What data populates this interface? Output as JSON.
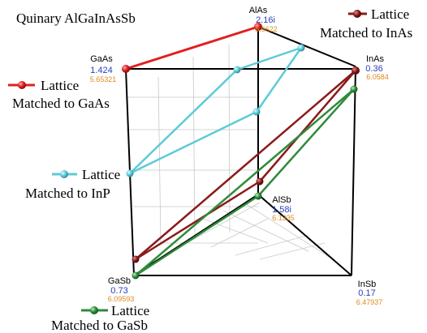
{
  "title": "Quinary AlGaInAsSb",
  "colors": {
    "gaas_line": "#e02020",
    "inp_line": "#5ccbd8",
    "inas_line": "#8b1a1a",
    "gasb_line": "#2e8b3a",
    "gap_text": "#2a3fbf",
    "lattice_text": "#e08a1a",
    "frame": "#000000",
    "grid": "#c8c8c8"
  },
  "vertices": {
    "alas": {
      "name": "AlAs",
      "gap": "2.16i",
      "lattice": "5.6622"
    },
    "gaas": {
      "name": "GaAs",
      "gap": "1.424",
      "lattice": "5.65321"
    },
    "inas": {
      "name": "InAs",
      "gap": "0.36",
      "lattice": "6.0584"
    },
    "alsb": {
      "name": "AlSb",
      "gap": "1.58i",
      "lattice": "6.1335"
    },
    "gasb": {
      "name": "GaSb",
      "gap": "0.73",
      "lattice": "6.09593"
    },
    "insb": {
      "name": "InSb",
      "gap": "0.17",
      "lattice": "6.47937"
    }
  },
  "legend": {
    "inas": {
      "line1": "Lattice",
      "line2": "Matched to InAs"
    },
    "gaas": {
      "line1": "Lattice",
      "line2": "Matched to GaAs"
    },
    "inp": {
      "line1": "Lattice",
      "line2": "Matched to InP"
    },
    "gasb": {
      "line1": "Lattice",
      "line2": "Matched to GaSb"
    }
  }
}
